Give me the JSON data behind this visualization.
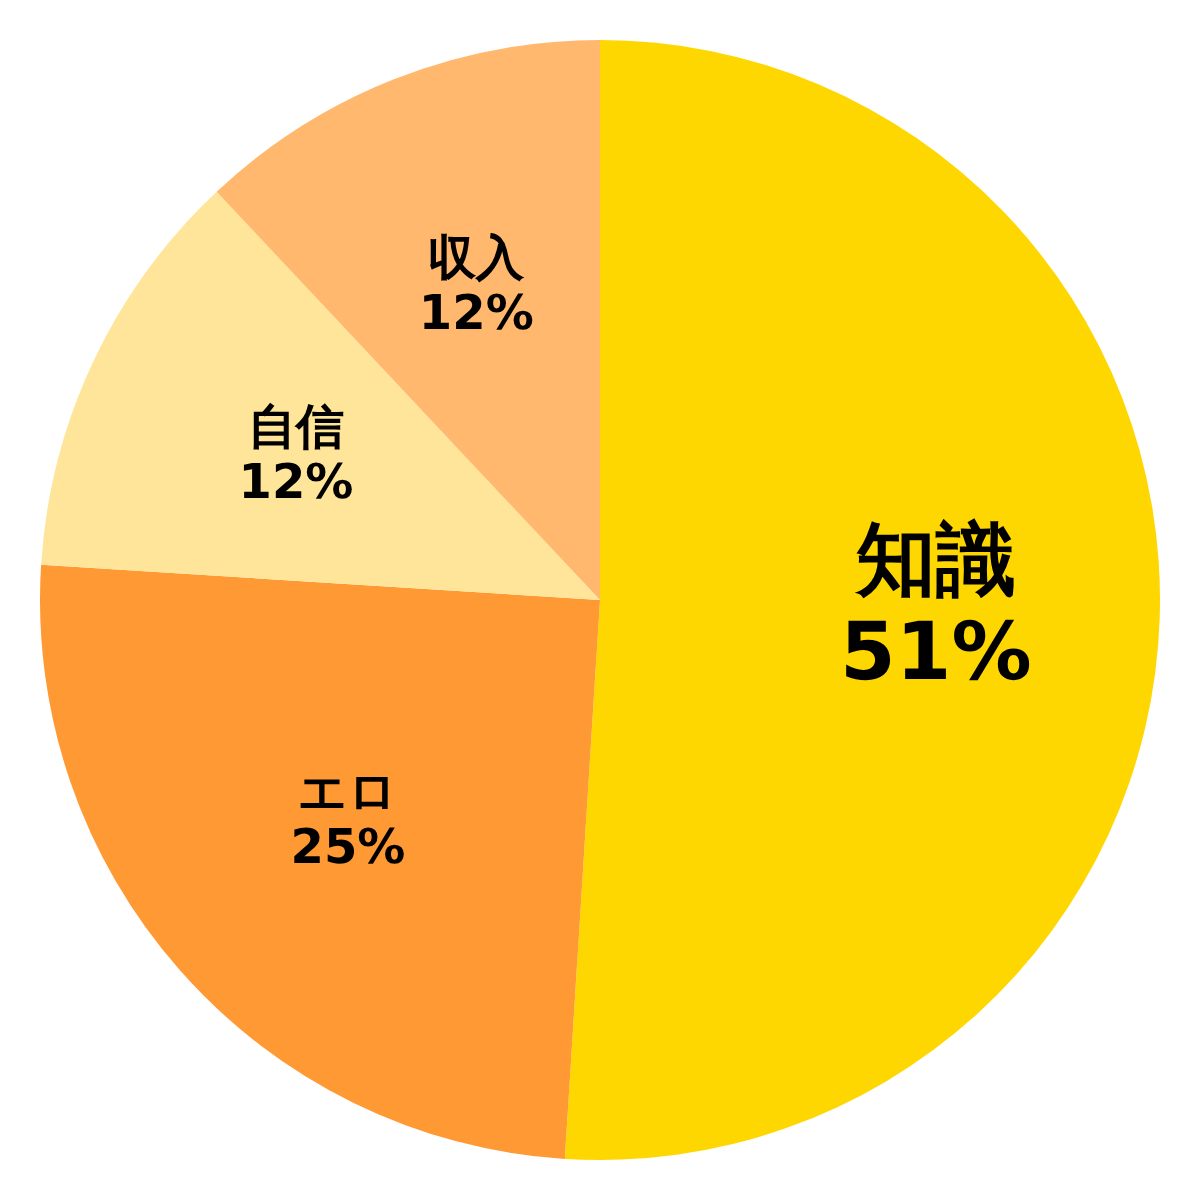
{
  "chart_data": {
    "type": "pie",
    "categories": [
      "知識",
      "エロ",
      "自信",
      "収入"
    ],
    "values": [
      51,
      25,
      12,
      12
    ],
    "colors": [
      "#ffd700",
      "#ff9933",
      "#ffe599",
      "#ffb86e"
    ],
    "value_labels": [
      "51%",
      "25%",
      "12%",
      "12%"
    ],
    "legend": false
  }
}
